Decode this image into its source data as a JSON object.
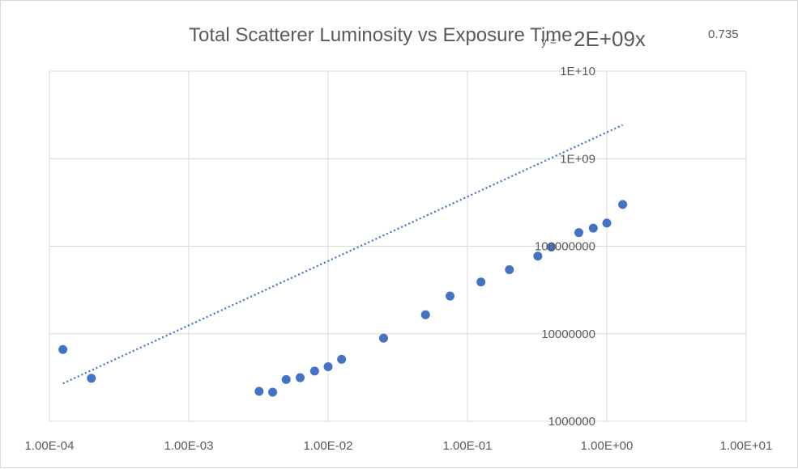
{
  "chart_data": {
    "type": "scatter",
    "title": "Total Scatterer Luminosity vs Exposure Time",
    "equation": {
      "prefix": "y = ",
      "base": "2E+09x",
      "exponent": "0.735"
    },
    "x_scale": "log",
    "y_scale": "log",
    "xlim": [
      0.0001,
      10
    ],
    "ylim": [
      1000000,
      10000000000
    ],
    "x_ticks": [
      {
        "value": 0.0001,
        "label": "1.00E-04"
      },
      {
        "value": 0.001,
        "label": "1.00E-03"
      },
      {
        "value": 0.01,
        "label": "1.00E-02"
      },
      {
        "value": 0.1,
        "label": "1.00E-01"
      },
      {
        "value": 1,
        "label": "1.00E+00"
      },
      {
        "value": 10,
        "label": "1.00E+01"
      }
    ],
    "y_ticks": [
      {
        "value": 1000000,
        "label": "1000000"
      },
      {
        "value": 10000000,
        "label": "10000000"
      },
      {
        "value": 100000000,
        "label": "100000000"
      },
      {
        "value": 1000000000,
        "label": "1E+09"
      },
      {
        "value": 10000000000,
        "label": "1E+10"
      }
    ],
    "grid": true,
    "legend": "none",
    "points": [
      {
        "x": 0.000125,
        "y": 6600000
      },
      {
        "x": 0.0002,
        "y": 3100000
      },
      {
        "x": 0.0032,
        "y": 2200000
      },
      {
        "x": 0.004,
        "y": 2150000
      },
      {
        "x": 0.005,
        "y": 3000000
      },
      {
        "x": 0.0063,
        "y": 3150000
      },
      {
        "x": 0.008,
        "y": 3750000
      },
      {
        "x": 0.01,
        "y": 4200000
      },
      {
        "x": 0.0125,
        "y": 5100000
      },
      {
        "x": 0.025,
        "y": 8900000
      },
      {
        "x": 0.05,
        "y": 16500000
      },
      {
        "x": 0.075,
        "y": 27000000
      },
      {
        "x": 0.125,
        "y": 39000000
      },
      {
        "x": 0.2,
        "y": 54000000
      },
      {
        "x": 0.32,
        "y": 77000000
      },
      {
        "x": 0.4,
        "y": 98000000
      },
      {
        "x": 0.63,
        "y": 143000000
      },
      {
        "x": 0.8,
        "y": 161000000
      },
      {
        "x": 1.0,
        "y": 184000000
      },
      {
        "x": 1.3,
        "y": 300000000
      }
    ],
    "trendline": {
      "type": "power",
      "coefficient": 2000000000,
      "exponent": 0.735,
      "x_range": [
        0.000125,
        1.3
      ]
    },
    "colors": {
      "points": "#4472c4",
      "trendline": "#4472c4",
      "grid": "#d9d9d9",
      "text": "#595959"
    }
  }
}
